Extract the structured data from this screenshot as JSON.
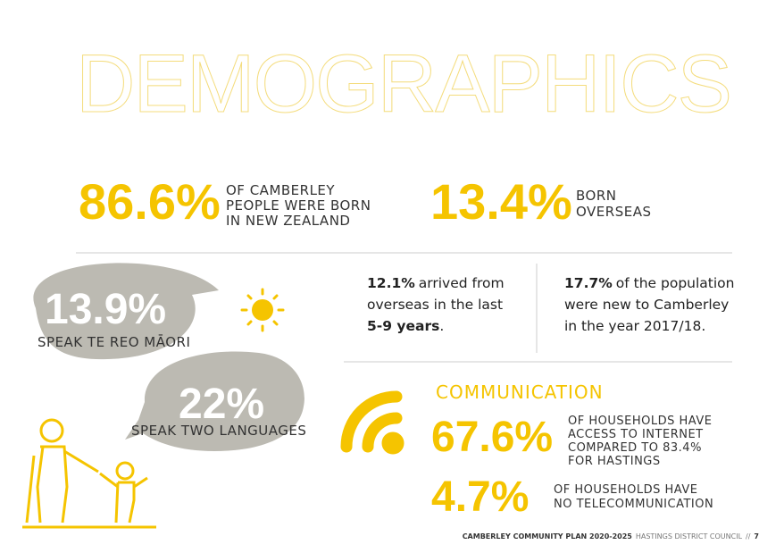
{
  "title": "DEMOGRAPHICS",
  "born_nz": {
    "figure": "86.6%",
    "lines": [
      "OF CAMBERLEY",
      "PEOPLE WERE BORN",
      "IN NEW ZEALAND"
    ]
  },
  "born_overseas": {
    "figure": "13.4%",
    "lines": [
      "BORN",
      "OVERSEAS"
    ]
  },
  "maori": {
    "figure": "13.9%",
    "text": "SPEAK TE REO MĀORI"
  },
  "languages": {
    "figure": "22%",
    "text": "SPEAK TWO LANGUAGES"
  },
  "arrived": {
    "figure": "12.1%",
    "lines": [
      "arrived from",
      "overseas in the last"
    ],
    "emphasis": "5-9 years",
    "end": "."
  },
  "new_residents": {
    "figure": "17.7%",
    "lines": [
      "of the population",
      "were new to Camberley",
      "in the year 2017/18."
    ]
  },
  "communication": {
    "heading": "COMMUNICATION",
    "internet": {
      "figure": "67.6%",
      "lines": [
        "OF HOUSEHOLDS HAVE",
        "ACCESS TO INTERNET",
        "COMPARED TO 83.4%",
        "FOR HASTINGS"
      ]
    },
    "no_telecom": {
      "figure": "4.7%",
      "lines": [
        "OF HOUSEHOLDS HAVE",
        "NO TELECOMMUNICATION"
      ]
    }
  },
  "footer": {
    "plan": "CAMBERLEY COMMUNITY PLAN 2020-2025",
    "council": "HASTINGS DISTRICT COUNCIL",
    "separator": "//",
    "page": "7"
  }
}
